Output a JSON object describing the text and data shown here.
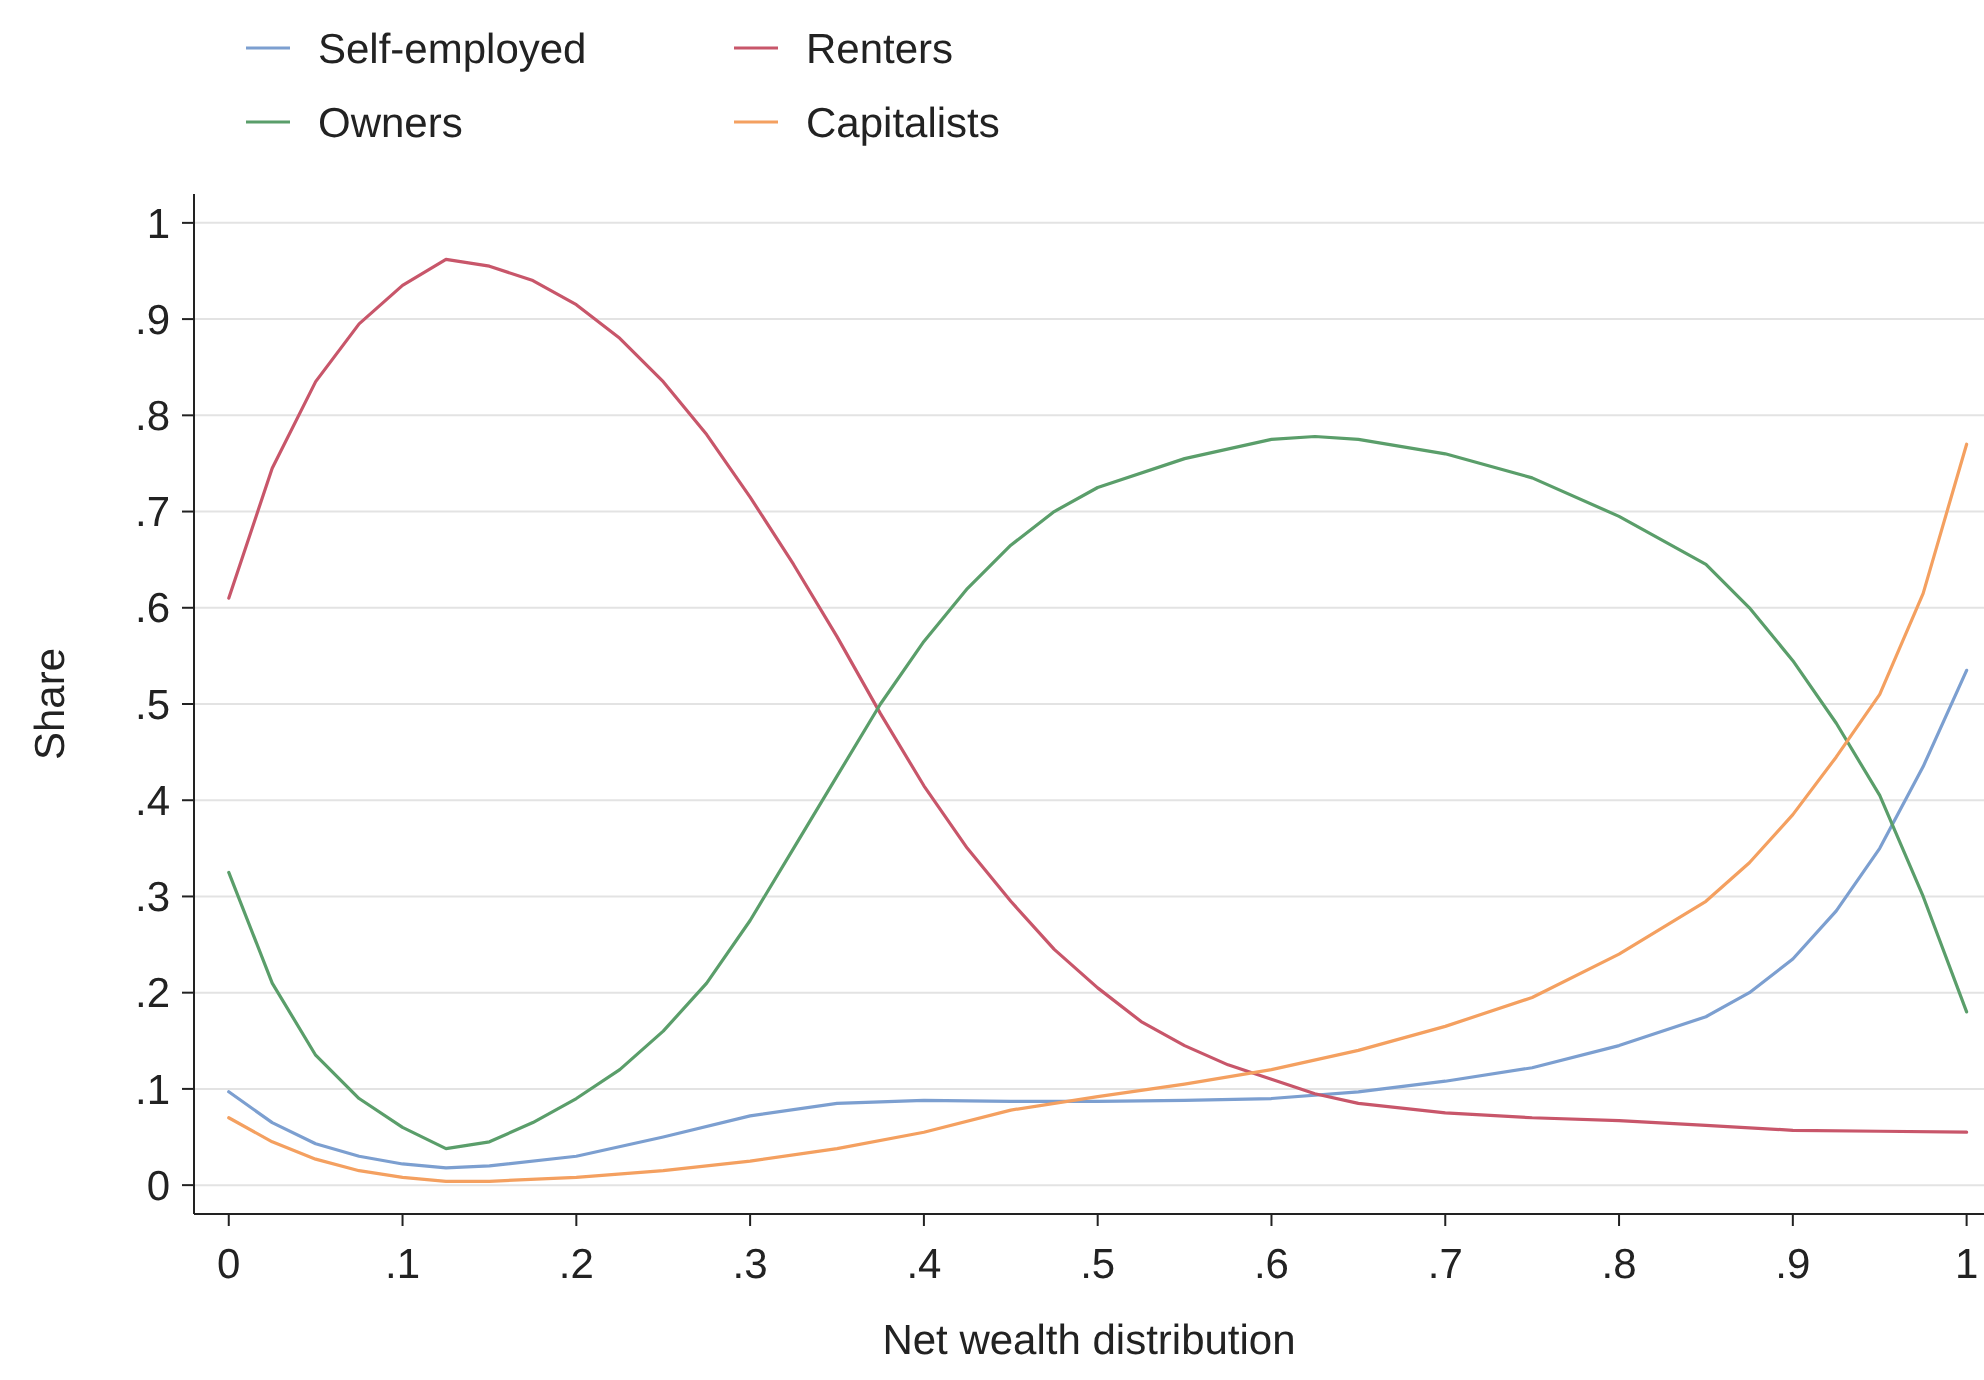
{
  "chart_data": {
    "type": "line",
    "xlabel": "Net wealth distribution",
    "ylabel": "Share",
    "xlim": [
      -0.02,
      1.01
    ],
    "ylim": [
      -0.03,
      1.03
    ],
    "xticks": [
      0,
      {
        "value": 0.1,
        "label": ".1"
      },
      {
        "value": 0.2,
        "label": ".2"
      },
      {
        "value": 0.3,
        "label": ".3"
      },
      {
        "value": 0.4,
        "label": ".4"
      },
      {
        "value": 0.5,
        "label": ".5"
      },
      {
        "value": 0.6,
        "label": ".6"
      },
      {
        "value": 0.7,
        "label": ".7"
      },
      {
        "value": 0.8,
        "label": ".8"
      },
      {
        "value": 0.9,
        "label": ".9"
      },
      1
    ],
    "yticks": [
      0,
      {
        "value": 0.1,
        "label": ".1"
      },
      {
        "value": 0.2,
        "label": ".2"
      },
      {
        "value": 0.3,
        "label": ".3"
      },
      {
        "value": 0.4,
        "label": ".4"
      },
      {
        "value": 0.5,
        "label": ".5"
      },
      {
        "value": 0.6,
        "label": ".6"
      },
      {
        "value": 0.7,
        "label": ".7"
      },
      {
        "value": 0.8,
        "label": ".8"
      },
      {
        "value": 0.9,
        "label": ".9"
      },
      1
    ],
    "grid": "y",
    "legend": "top",
    "marker": "none",
    "line_style": "solid",
    "series": [
      {
        "name": "Self-employed",
        "color": "#7c9fd0",
        "x": [
          0,
          0.025,
          0.05,
          0.075,
          0.1,
          0.125,
          0.15,
          0.2,
          0.25,
          0.3,
          0.35,
          0.4,
          0.45,
          0.5,
          0.55,
          0.6,
          0.65,
          0.7,
          0.75,
          0.8,
          0.85,
          0.875,
          0.9,
          0.925,
          0.95,
          0.975,
          1
        ],
        "values": [
          0.097,
          0.065,
          0.043,
          0.03,
          0.022,
          0.018,
          0.02,
          0.03,
          0.05,
          0.072,
          0.085,
          0.088,
          0.087,
          0.087,
          0.088,
          0.09,
          0.097,
          0.108,
          0.122,
          0.145,
          0.175,
          0.2,
          0.235,
          0.285,
          0.35,
          0.435,
          0.535
        ]
      },
      {
        "name": "Renters",
        "color": "#c8566a",
        "x": [
          0,
          0.025,
          0.05,
          0.075,
          0.1,
          0.125,
          0.15,
          0.175,
          0.2,
          0.225,
          0.25,
          0.275,
          0.3,
          0.325,
          0.35,
          0.375,
          0.4,
          0.425,
          0.45,
          0.475,
          0.5,
          0.525,
          0.55,
          0.575,
          0.6,
          0.625,
          0.65,
          0.7,
          0.75,
          0.8,
          0.85,
          0.9,
          0.95,
          1
        ],
        "values": [
          0.61,
          0.745,
          0.835,
          0.895,
          0.935,
          0.962,
          0.955,
          0.94,
          0.915,
          0.88,
          0.835,
          0.78,
          0.715,
          0.645,
          0.57,
          0.49,
          0.415,
          0.35,
          0.295,
          0.245,
          0.205,
          0.17,
          0.145,
          0.125,
          0.11,
          0.095,
          0.085,
          0.075,
          0.07,
          0.067,
          0.062,
          0.057,
          0.056,
          0.055
        ]
      },
      {
        "name": "Owners",
        "color": "#5a9e6a",
        "x": [
          0,
          0.025,
          0.05,
          0.075,
          0.1,
          0.125,
          0.15,
          0.175,
          0.2,
          0.225,
          0.25,
          0.275,
          0.3,
          0.325,
          0.35,
          0.375,
          0.4,
          0.425,
          0.45,
          0.475,
          0.5,
          0.55,
          0.6,
          0.625,
          0.65,
          0.7,
          0.75,
          0.8,
          0.85,
          0.875,
          0.9,
          0.925,
          0.95,
          0.975,
          1
        ],
        "values": [
          0.325,
          0.21,
          0.135,
          0.09,
          0.06,
          0.038,
          0.045,
          0.065,
          0.09,
          0.12,
          0.16,
          0.21,
          0.275,
          0.35,
          0.425,
          0.5,
          0.565,
          0.62,
          0.665,
          0.7,
          0.725,
          0.755,
          0.775,
          0.778,
          0.775,
          0.76,
          0.735,
          0.695,
          0.645,
          0.6,
          0.545,
          0.48,
          0.405,
          0.3,
          0.18
        ]
      },
      {
        "name": "Capitalists",
        "color": "#f4a060",
        "x": [
          0,
          0.025,
          0.05,
          0.075,
          0.1,
          0.125,
          0.15,
          0.2,
          0.25,
          0.3,
          0.35,
          0.4,
          0.45,
          0.5,
          0.55,
          0.6,
          0.65,
          0.7,
          0.75,
          0.8,
          0.85,
          0.875,
          0.9,
          0.925,
          0.95,
          0.975,
          1
        ],
        "values": [
          0.07,
          0.045,
          0.027,
          0.015,
          0.008,
          0.004,
          0.004,
          0.008,
          0.015,
          0.025,
          0.038,
          0.055,
          0.078,
          0.092,
          0.105,
          0.12,
          0.14,
          0.165,
          0.195,
          0.24,
          0.295,
          0.335,
          0.385,
          0.445,
          0.51,
          0.615,
          0.77
        ]
      }
    ]
  }
}
